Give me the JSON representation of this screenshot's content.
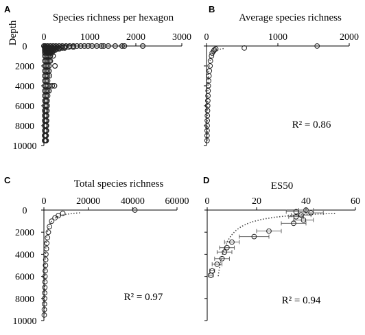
{
  "chart_data": [
    {
      "type": "scatter",
      "panel_letter": "A",
      "title": "Species richness per hexagon",
      "ylabel": "Depth",
      "xlim": [
        0,
        3000
      ],
      "ylim": [
        0,
        10000
      ],
      "x_axis_position": "top",
      "y_reversed": true,
      "x_ticks": [
        "0",
        "1000",
        "2000",
        "3000"
      ],
      "y_ticks": [
        "0",
        "2000",
        "4000",
        "6000",
        "8000",
        "10000"
      ],
      "marker": "open-circle",
      "series": [
        {
          "points": [
            [
              0,
              0
            ],
            [
              30,
              0
            ],
            [
              80,
              0
            ],
            [
              140,
              0
            ],
            [
              200,
              0
            ],
            [
              260,
              0
            ],
            [
              330,
              0
            ],
            [
              400,
              0
            ],
            [
              480,
              0
            ],
            [
              560,
              0
            ],
            [
              640,
              0
            ],
            [
              720,
              0
            ],
            [
              800,
              0
            ],
            [
              880,
              0
            ],
            [
              960,
              0
            ],
            [
              1050,
              0
            ],
            [
              1150,
              0
            ],
            [
              1250,
              0
            ],
            [
              1300,
              0
            ],
            [
              1400,
              0
            ],
            [
              1550,
              0
            ],
            [
              1700,
              0
            ],
            [
              1750,
              0
            ],
            [
              2150,
              0
            ],
            [
              20,
              100
            ],
            [
              60,
              100
            ],
            [
              110,
              100
            ],
            [
              170,
              100
            ],
            [
              240,
              100
            ],
            [
              300,
              100
            ],
            [
              380,
              100
            ],
            [
              460,
              100
            ],
            [
              540,
              100
            ],
            [
              640,
              100
            ],
            [
              20,
              200
            ],
            [
              60,
              200
            ],
            [
              100,
              200
            ],
            [
              150,
              200
            ],
            [
              200,
              200
            ],
            [
              260,
              200
            ],
            [
              330,
              200
            ],
            [
              400,
              200
            ],
            [
              450,
              200
            ],
            [
              20,
              300
            ],
            [
              60,
              300
            ],
            [
              100,
              300
            ],
            [
              140,
              300
            ],
            [
              190,
              300
            ],
            [
              230,
              300
            ],
            [
              280,
              300
            ],
            [
              330,
              300
            ],
            [
              20,
              400
            ],
            [
              50,
              400
            ],
            [
              90,
              400
            ],
            [
              130,
              400
            ],
            [
              170,
              400
            ],
            [
              210,
              400
            ],
            [
              250,
              400
            ],
            [
              20,
              500
            ],
            [
              50,
              500
            ],
            [
              80,
              500
            ],
            [
              120,
              500
            ],
            [
              160,
              500
            ],
            [
              200,
              500
            ],
            [
              20,
              700
            ],
            [
              50,
              700
            ],
            [
              80,
              700
            ],
            [
              110,
              700
            ],
            [
              140,
              700
            ],
            [
              170,
              700
            ],
            [
              20,
              1000
            ],
            [
              50,
              1000
            ],
            [
              80,
              1000
            ],
            [
              110,
              1000
            ],
            [
              140,
              1000
            ],
            [
              200,
              1000
            ],
            [
              20,
              1500
            ],
            [
              50,
              1500
            ],
            [
              80,
              1500
            ],
            [
              110,
              1500
            ],
            [
              140,
              1500
            ],
            [
              20,
              2000
            ],
            [
              50,
              2000
            ],
            [
              80,
              2000
            ],
            [
              110,
              2000
            ],
            [
              240,
              2000
            ],
            [
              20,
              2500
            ],
            [
              50,
              2500
            ],
            [
              80,
              2500
            ],
            [
              110,
              2500
            ],
            [
              20,
              3000
            ],
            [
              50,
              3000
            ],
            [
              80,
              3000
            ],
            [
              120,
              3000
            ],
            [
              20,
              3500
            ],
            [
              50,
              3500
            ],
            [
              80,
              3500
            ],
            [
              20,
              4000
            ],
            [
              50,
              4000
            ],
            [
              80,
              4000
            ],
            [
              120,
              4000
            ],
            [
              180,
              4000
            ],
            [
              230,
              4000
            ],
            [
              20,
              4500
            ],
            [
              50,
              4500
            ],
            [
              80,
              4500
            ],
            [
              110,
              4500
            ],
            [
              20,
              5000
            ],
            [
              50,
              5000
            ],
            [
              80,
              5000
            ],
            [
              20,
              5500
            ],
            [
              45,
              5500
            ],
            [
              70,
              5500
            ],
            [
              20,
              6000
            ],
            [
              45,
              6000
            ],
            [
              70,
              6000
            ],
            [
              15,
              6500
            ],
            [
              40,
              6500
            ],
            [
              65,
              6500
            ],
            [
              15,
              7000
            ],
            [
              40,
              7000
            ],
            [
              60,
              7000
            ],
            [
              15,
              7500
            ],
            [
              40,
              7500
            ],
            [
              60,
              7500
            ],
            [
              15,
              8000
            ],
            [
              40,
              8000
            ],
            [
              55,
              8000
            ],
            [
              15,
              8500
            ],
            [
              40,
              8500
            ],
            [
              55,
              8500
            ],
            [
              15,
              9000
            ],
            [
              35,
              9000
            ],
            [
              50,
              9000
            ],
            [
              15,
              9500
            ],
            [
              35,
              9500
            ],
            [
              50,
              9500
            ]
          ]
        }
      ]
    },
    {
      "type": "scatter",
      "panel_letter": "B",
      "title": "Average species richness",
      "xlim": [
        0,
        2000
      ],
      "ylim": [
        0,
        10000
      ],
      "x_axis_position": "top",
      "y_reversed": true,
      "x_ticks": [
        "0",
        "1000",
        "2000"
      ],
      "y_ticks": [],
      "marker": "open-circle",
      "r2": "R² = 0.86",
      "trendline": "dotted",
      "series": [
        {
          "points": [
            [
              1550,
              0
            ],
            [
              530,
              200
            ],
            [
              130,
              300
            ],
            [
              110,
              400
            ],
            [
              100,
              500
            ],
            [
              80,
              700
            ],
            [
              70,
              1000
            ],
            [
              55,
              1500
            ],
            [
              50,
              2000
            ],
            [
              40,
              2500
            ],
            [
              35,
              3000
            ],
            [
              30,
              3500
            ],
            [
              25,
              4000
            ],
            [
              22,
              4500
            ],
            [
              20,
              5000
            ],
            [
              18,
              5500
            ],
            [
              16,
              6000
            ],
            [
              14,
              6500
            ],
            [
              12,
              7000
            ],
            [
              11,
              7500
            ],
            [
              10,
              8000
            ],
            [
              9,
              8500
            ],
            [
              8,
              9000
            ],
            [
              8,
              9500
            ]
          ]
        }
      ]
    },
    {
      "type": "scatter",
      "panel_letter": "C",
      "title": "Total species richness",
      "xlim": [
        0,
        60000
      ],
      "ylim": [
        0,
        10000
      ],
      "x_axis_position": "top",
      "y_reversed": true,
      "x_ticks": [
        "0",
        "20000",
        "40000",
        "60000"
      ],
      "y_ticks": [
        "0",
        "2000",
        "4000",
        "6000",
        "8000",
        "10000"
      ],
      "marker": "open-circle",
      "r2": "R² = 0.97",
      "trendline": "dotted",
      "series": [
        {
          "points": [
            [
              41000,
              0
            ],
            [
              8500,
              300
            ],
            [
              6500,
              500
            ],
            [
              5000,
              700
            ],
            [
              3500,
              1000
            ],
            [
              2500,
              1500
            ],
            [
              2000,
              2000
            ],
            [
              1600,
              2500
            ],
            [
              1300,
              3000
            ],
            [
              1100,
              3500
            ],
            [
              900,
              4000
            ],
            [
              800,
              4500
            ],
            [
              700,
              5000
            ],
            [
              600,
              5500
            ],
            [
              500,
              6000
            ],
            [
              450,
              6500
            ],
            [
              400,
              7000
            ],
            [
              350,
              7500
            ],
            [
              300,
              8000
            ],
            [
              250,
              8500
            ],
            [
              200,
              9000
            ],
            [
              150,
              9500
            ]
          ]
        }
      ]
    },
    {
      "type": "scatter",
      "panel_letter": "D",
      "title": "ES50",
      "xlim": [
        0,
        60
      ],
      "ylim": [
        0,
        10000
      ],
      "x_axis_position": "top",
      "y_reversed": true,
      "x_ticks": [
        "0",
        "20",
        "40",
        "60"
      ],
      "y_ticks": [],
      "marker": "open-circle",
      "error_bars": "horizontal",
      "r2": "R² = 0.94",
      "trendline": "dotted",
      "series": [
        {
          "points": [
            [
              40,
              0,
              3
            ],
            [
              36,
              150,
              4
            ],
            [
              42,
              250,
              5
            ],
            [
              38,
              450,
              4
            ],
            [
              36,
              600,
              3
            ],
            [
              39,
              900,
              4
            ],
            [
              35,
              1200,
              5
            ],
            [
              25,
              1900,
              5
            ],
            [
              19,
              2400,
              6
            ],
            [
              10,
              2900,
              3
            ],
            [
              8,
              3400,
              3
            ],
            [
              7,
              3800,
              3
            ],
            [
              6,
              4400,
              3
            ],
            [
              4,
              4900,
              2
            ],
            [
              2,
              5500,
              1
            ],
            [
              1.5,
              5900,
              1
            ]
          ]
        }
      ]
    }
  ]
}
